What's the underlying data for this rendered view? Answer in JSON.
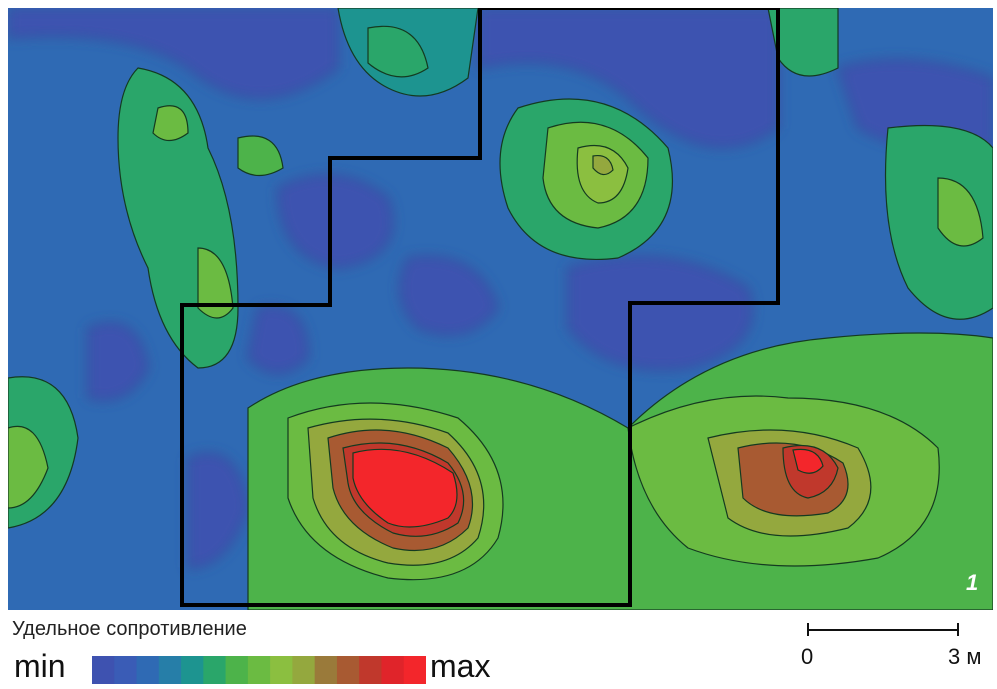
{
  "map": {
    "panel_label": "1",
    "legend": {
      "title": "Удельное сопротивление",
      "min_label": "min",
      "max_label": "max",
      "colors": [
        "#3e52b0",
        "#3a5cb6",
        "#2f6ab4",
        "#267ea8",
        "#1d9490",
        "#2aa66a",
        "#4db34a",
        "#6bbb42",
        "#8bbf40",
        "#94a83e",
        "#9a7a3a",
        "#a85a32",
        "#c0382c",
        "#e0242a",
        "#f3262b"
      ]
    },
    "scale_bar": {
      "start_label": "0",
      "end_label": "3 м"
    }
  }
}
